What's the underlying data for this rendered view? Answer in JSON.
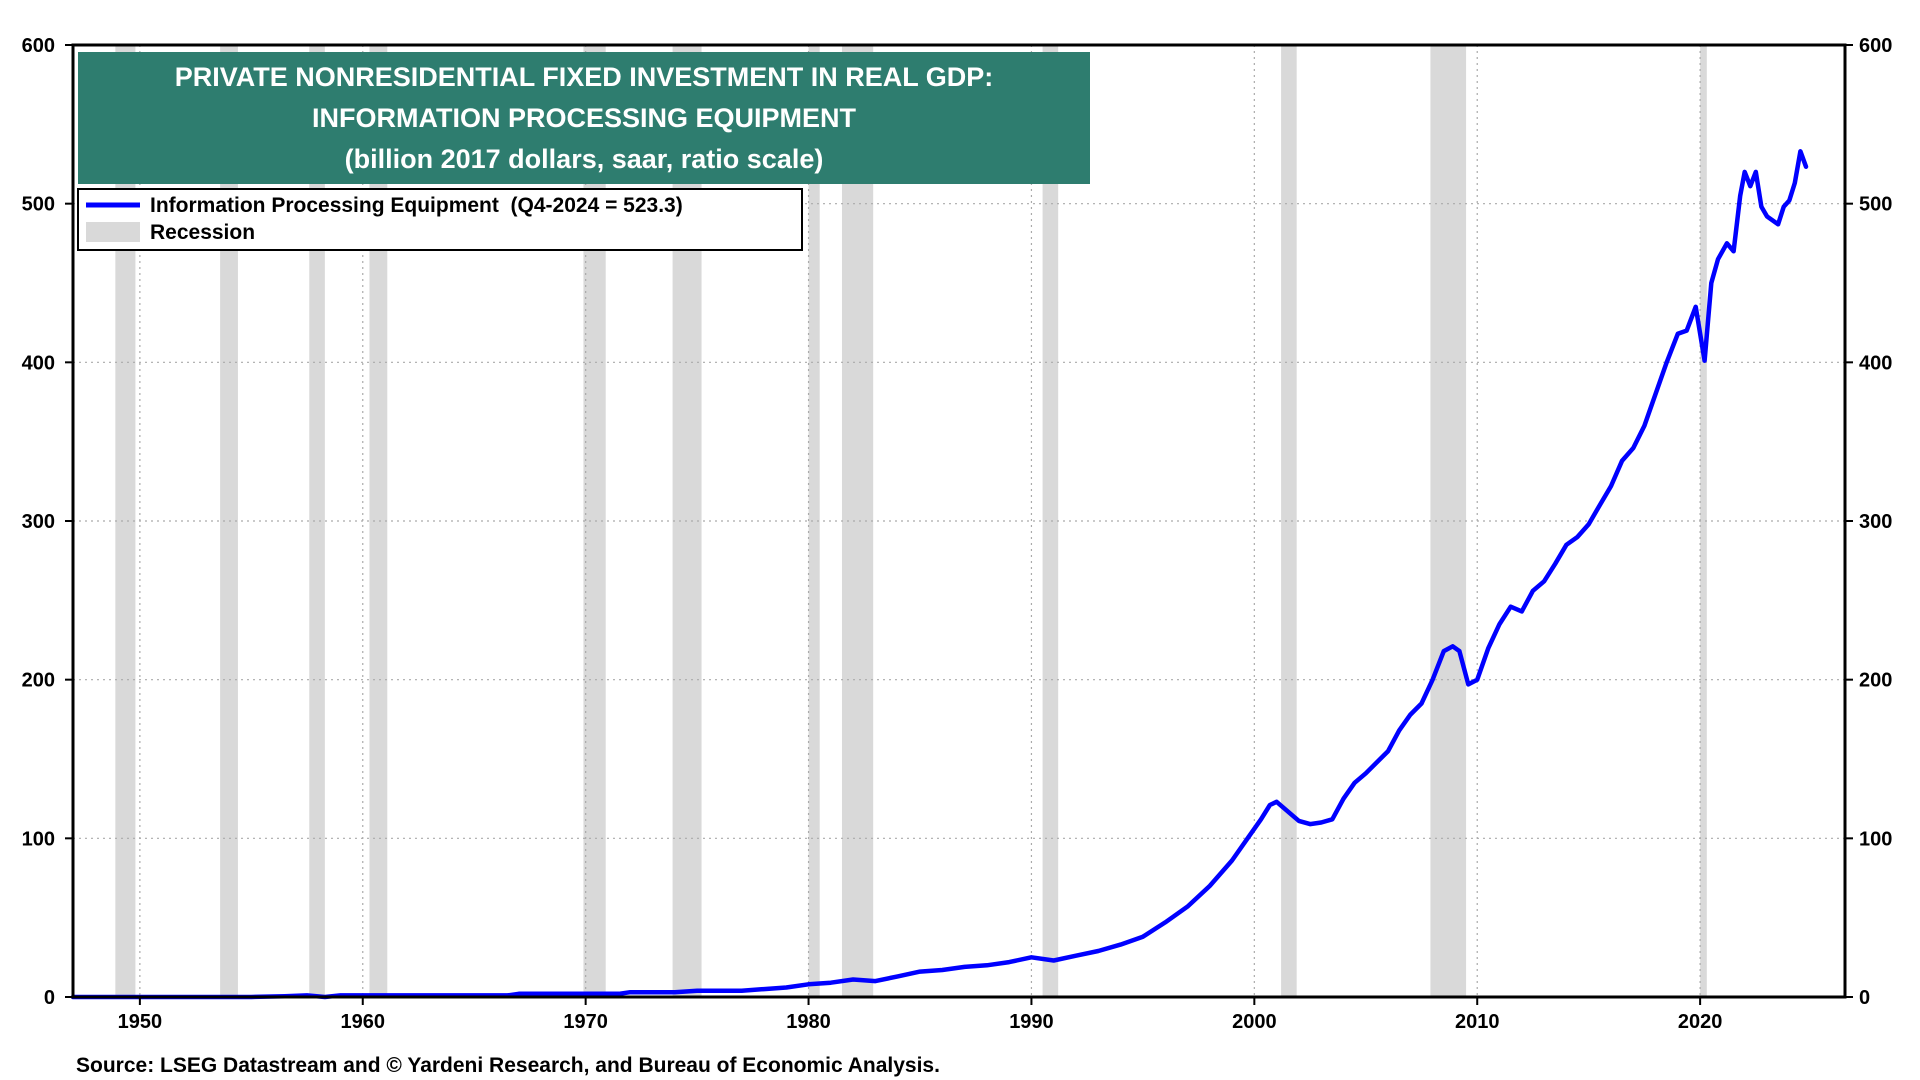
{
  "chart_data": {
    "type": "line",
    "title_lines": [
      "PRIVATE NONRESIDENTIAL FIXED INVESTMENT IN REAL GDP:",
      "INFORMATION PROCESSING EQUIPMENT",
      "(billion 2017 dollars, saar, ratio scale)"
    ],
    "source": "Source: LSEG Datastream and © Yardeni Research, and Bureau of Economic Analysis.",
    "legend": [
      {
        "label": "Information Processing Equipment  (Q4-2024 = 523.3)",
        "kind": "line",
        "color": "#0000ff"
      },
      {
        "label": "Recession",
        "kind": "box",
        "color": "#d9d9d9"
      }
    ],
    "legend_position": "top-left",
    "x_ticks": [
      "1950",
      "1960",
      "1970",
      "1980",
      "1990",
      "2000",
      "2010",
      "2020"
    ],
    "y_ticks": [
      "0",
      "100",
      "200",
      "300",
      "400",
      "500",
      "600"
    ],
    "y_tick_values": [
      0,
      100,
      200,
      300,
      400,
      500,
      600
    ],
    "xlim": [
      1947.0,
      2026.5
    ],
    "ylim": [
      0,
      600
    ],
    "grid": true,
    "colors": {
      "series": "#0000ff",
      "recession": "#d9d9d9",
      "title_bg": "#2e7d6f",
      "grid": "#aaaaaa"
    },
    "recessions": [
      [
        1948.9,
        1949.8
      ],
      [
        1953.6,
        1954.4
      ],
      [
        1957.6,
        1958.3
      ],
      [
        1960.3,
        1961.1
      ],
      [
        1969.9,
        1970.9
      ],
      [
        1973.9,
        1975.2
      ],
      [
        1980.0,
        1980.5
      ],
      [
        1981.5,
        1982.9
      ],
      [
        1990.5,
        1991.2
      ],
      [
        2001.2,
        2001.9
      ],
      [
        2007.9,
        2009.5
      ],
      [
        2020.0,
        2020.3
      ]
    ],
    "series": [
      {
        "name": "Information Processing Equipment",
        "x": [
          1947.0,
          1955.0,
          1956.5,
          1957.5,
          1958.3,
          1959.0,
          1962.0,
          1966.5,
          1967.0,
          1971.5,
          1972.0,
          1974.0,
          1975.0,
          1977.0,
          1978.0,
          1979.0,
          1980.0,
          1981.0,
          1982.0,
          1983.0,
          1984.0,
          1985.0,
          1986.0,
          1987.0,
          1988.0,
          1989.0,
          1990.0,
          1991.0,
          1992.0,
          1993.0,
          1994.0,
          1995.0,
          1996.0,
          1997.0,
          1998.0,
          1999.0,
          1999.7,
          2000.3,
          2000.7,
          2001.0,
          2001.5,
          2002.0,
          2002.5,
          2003.0,
          2003.5,
          2004.0,
          2004.5,
          2005.0,
          2006.0,
          2006.5,
          2007.0,
          2007.5,
          2008.0,
          2008.5,
          2008.9,
          2009.2,
          2009.6,
          2010.0,
          2010.5,
          2011.0,
          2011.5,
          2012.0,
          2012.5,
          2013.0,
          2013.5,
          2014.0,
          2014.5,
          2015.0,
          2015.5,
          2016.0,
          2016.5,
          2017.0,
          2017.5,
          2018.0,
          2018.5,
          2019.0,
          2019.4,
          2019.8,
          2020.2,
          2020.5,
          2020.8,
          2021.2,
          2021.5,
          2021.8,
          2022.0,
          2022.25,
          2022.5,
          2022.75,
          2023.0,
          2023.5,
          2023.75,
          2024.0,
          2024.25,
          2024.5,
          2024.75
        ],
        "y": [
          0,
          0,
          0.5,
          1,
          0,
          1,
          1,
          1,
          2,
          2,
          3,
          3,
          4,
          4,
          5,
          6,
          8,
          9,
          11,
          10,
          13,
          16,
          17,
          19,
          20,
          22,
          25,
          23,
          26,
          29,
          33,
          38,
          47,
          57,
          70,
          86,
          100,
          112,
          121,
          123,
          117,
          111,
          109,
          110,
          112,
          125,
          135,
          141,
          155,
          168,
          178,
          185,
          200,
          218,
          221,
          218,
          197,
          200,
          220,
          235,
          246,
          243,
          256,
          262,
          273,
          285,
          290,
          298,
          310,
          322,
          338,
          346,
          360,
          380,
          400,
          418,
          420,
          435,
          401,
          450,
          465,
          475,
          470,
          505,
          520,
          511,
          520,
          498,
          492,
          487,
          498,
          502,
          513,
          533,
          523.3
        ]
      }
    ]
  }
}
